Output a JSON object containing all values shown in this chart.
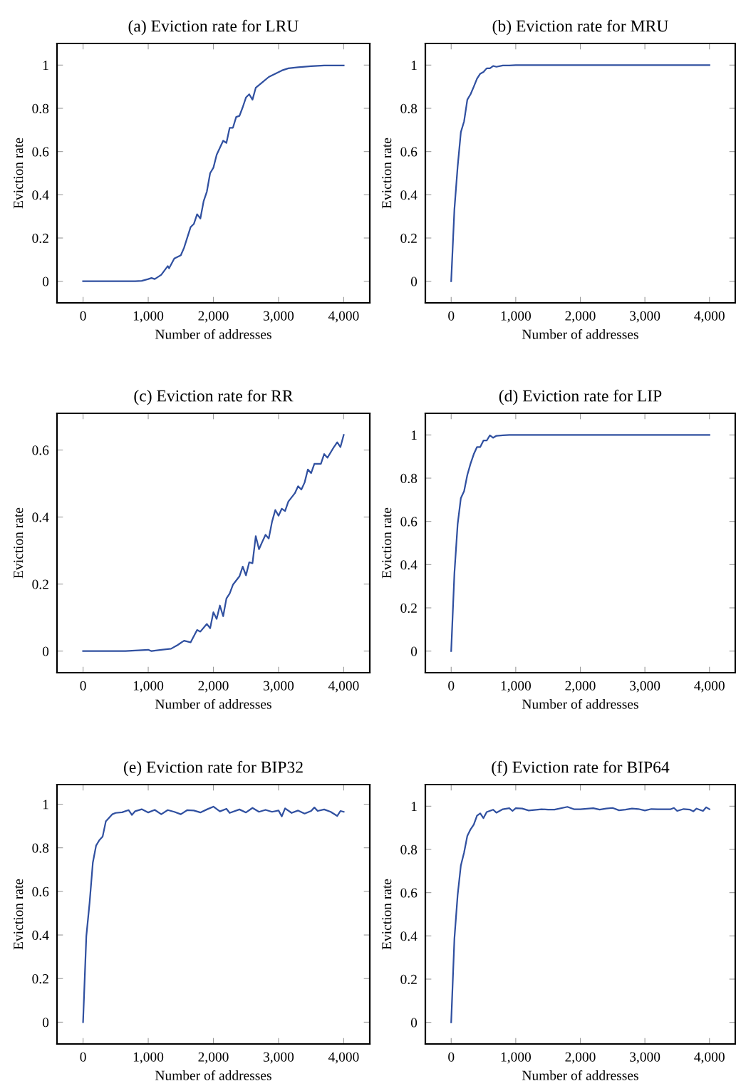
{
  "chart_data": [
    {
      "type": "line",
      "title": "(a) Eviction rate for LRU",
      "xlabel": "Number of addresses",
      "ylabel": "Eviction rate",
      "color": "#3050a0",
      "x": [
        0,
        800,
        900,
        1000,
        1050,
        1100,
        1200,
        1300,
        1320,
        1400,
        1500,
        1550,
        1650,
        1700,
        1750,
        1800,
        1850,
        1900,
        1950,
        2000,
        2050,
        2150,
        2200,
        2250,
        2300,
        2350,
        2400,
        2450,
        2500,
        2550,
        2600,
        2650,
        2750,
        2850,
        2950,
        3050,
        3150,
        3300,
        3500,
        3700,
        4000
      ],
      "values": [
        0,
        0,
        0.002,
        0.01,
        0.015,
        0.01,
        0.03,
        0.07,
        0.06,
        0.105,
        0.12,
        0.155,
        0.25,
        0.265,
        0.31,
        0.29,
        0.37,
        0.415,
        0.5,
        0.525,
        0.585,
        0.65,
        0.64,
        0.71,
        0.71,
        0.76,
        0.765,
        0.805,
        0.85,
        0.865,
        0.84,
        0.895,
        0.92,
        0.945,
        0.96,
        0.975,
        0.985,
        0.99,
        0.995,
        0.998,
        0.998
      ],
      "xlim": [
        -400,
        4400
      ],
      "ylim": [
        -0.1,
        1.1
      ],
      "xticks": [
        0,
        {
          "value": 1000,
          "label": "1,000"
        },
        {
          "value": 2000,
          "label": "2,000"
        },
        {
          "value": 3000,
          "label": "3,000"
        },
        {
          "value": 4000,
          "label": "4,000"
        }
      ],
      "yticks": [
        0,
        0.2,
        0.4,
        0.6,
        0.8,
        1
      ]
    },
    {
      "type": "line",
      "title": "(b) Eviction rate for MRU",
      "xlabel": "Number of addresses",
      "ylabel": "Eviction rate",
      "color": "#3050a0",
      "x": [
        0,
        50,
        100,
        150,
        200,
        250,
        300,
        350,
        400,
        450,
        500,
        550,
        600,
        650,
        700,
        800,
        900,
        1000,
        4000
      ],
      "values": [
        0,
        0.333,
        0.53,
        0.69,
        0.74,
        0.84,
        0.865,
        0.9,
        0.937,
        0.96,
        0.968,
        0.985,
        0.985,
        0.996,
        0.992,
        0.998,
        0.998,
        1,
        1
      ],
      "xlim": [
        -400,
        4400
      ],
      "ylim": [
        -0.1,
        1.1
      ],
      "xticks": [
        0,
        {
          "value": 1000,
          "label": "1,000"
        },
        {
          "value": 2000,
          "label": "2,000"
        },
        {
          "value": 3000,
          "label": "3,000"
        },
        {
          "value": 4000,
          "label": "4,000"
        }
      ],
      "yticks": [
        0,
        0.2,
        0.4,
        0.6,
        0.8,
        1
      ]
    },
    {
      "type": "line",
      "title": "(c) Eviction rate for RR",
      "xlabel": "Number of addresses",
      "ylabel": "Eviction rate",
      "color": "#3050a0",
      "x": [
        0,
        650,
        1000,
        1050,
        1200,
        1350,
        1450,
        1550,
        1650,
        1750,
        1800,
        1900,
        1950,
        2000,
        2050,
        2100,
        2150,
        2200,
        2250,
        2300,
        2400,
        2450,
        2500,
        2550,
        2600,
        2650,
        2700,
        2750,
        2800,
        2850,
        2900,
        2950,
        3000,
        3050,
        3100,
        3150,
        3250,
        3300,
        3350,
        3400,
        3450,
        3500,
        3550,
        3650,
        3700,
        3750,
        3850,
        3900,
        3950,
        4000
      ],
      "values": [
        0,
        0,
        0.004,
        0,
        0.004,
        0.007,
        0.018,
        0.031,
        0.026,
        0.063,
        0.058,
        0.081,
        0.068,
        0.116,
        0.096,
        0.136,
        0.104,
        0.157,
        0.172,
        0.198,
        0.223,
        0.252,
        0.226,
        0.265,
        0.262,
        0.343,
        0.304,
        0.326,
        0.347,
        0.336,
        0.386,
        0.421,
        0.404,
        0.425,
        0.418,
        0.446,
        0.471,
        0.492,
        0.482,
        0.503,
        0.542,
        0.531,
        0.559,
        0.559,
        0.588,
        0.577,
        0.609,
        0.623,
        0.609,
        0.645
      ],
      "xlim": [
        -400,
        4400
      ],
      "ylim": [
        -0.0645,
        0.7095
      ],
      "xticks": [
        0,
        {
          "value": 1000,
          "label": "1,000"
        },
        {
          "value": 2000,
          "label": "2,000"
        },
        {
          "value": 3000,
          "label": "3,000"
        },
        {
          "value": 4000,
          "label": "4,000"
        }
      ],
      "yticks": [
        0,
        0.2,
        0.4,
        0.6
      ]
    },
    {
      "type": "line",
      "title": "(d) Eviction rate for LIP",
      "xlabel": "Number of addresses",
      "ylabel": "Eviction rate",
      "color": "#3050a0",
      "x": [
        0,
        50,
        100,
        150,
        200,
        250,
        300,
        350,
        400,
        450,
        500,
        550,
        600,
        650,
        700,
        800,
        900,
        1000,
        4000
      ],
      "values": [
        0,
        0.36,
        0.587,
        0.708,
        0.74,
        0.815,
        0.867,
        0.911,
        0.944,
        0.944,
        0.974,
        0.974,
        0.998,
        0.987,
        0.996,
        0.998,
        1,
        1,
        1
      ],
      "xlim": [
        -400,
        4400
      ],
      "ylim": [
        -0.1,
        1.1
      ],
      "xticks": [
        0,
        {
          "value": 1000,
          "label": "1,000"
        },
        {
          "value": 2000,
          "label": "2,000"
        },
        {
          "value": 3000,
          "label": "3,000"
        },
        {
          "value": 4000,
          "label": "4,000"
        }
      ],
      "yticks": [
        0,
        0.2,
        0.4,
        0.6,
        0.8,
        1
      ]
    },
    {
      "type": "line",
      "title": "(e) Eviction rate for BIP32",
      "xlabel": "Number of addresses",
      "ylabel": "Eviction rate",
      "color": "#3050a0",
      "x": [
        0,
        50,
        100,
        150,
        200,
        250,
        300,
        350,
        400,
        450,
        500,
        600,
        700,
        750,
        800,
        900,
        1000,
        1100,
        1200,
        1300,
        1400,
        1500,
        1600,
        1700,
        1800,
        1900,
        2000,
        2100,
        2200,
        2250,
        2400,
        2500,
        2600,
        2700,
        2800,
        2900,
        3000,
        3050,
        3100,
        3200,
        3300,
        3400,
        3500,
        3550,
        3600,
        3700,
        3800,
        3900,
        3950,
        4000
      ],
      "values": [
        0,
        0.395,
        0.547,
        0.732,
        0.81,
        0.835,
        0.851,
        0.922,
        0.938,
        0.954,
        0.96,
        0.963,
        0.973,
        0.951,
        0.968,
        0.977,
        0.962,
        0.974,
        0.954,
        0.973,
        0.965,
        0.954,
        0.973,
        0.971,
        0.962,
        0.976,
        0.989,
        0.967,
        0.979,
        0.96,
        0.976,
        0.962,
        0.983,
        0.965,
        0.974,
        0.965,
        0.971,
        0.944,
        0.981,
        0.96,
        0.971,
        0.957,
        0.969,
        0.985,
        0.969,
        0.976,
        0.965,
        0.946,
        0.969,
        0.965
      ],
      "xlim": [
        -400,
        4400
      ],
      "ylim": [
        -0.1,
        1.09
      ],
      "xticks": [
        0,
        {
          "value": 1000,
          "label": "1,000"
        },
        {
          "value": 2000,
          "label": "2,000"
        },
        {
          "value": 3000,
          "label": "3,000"
        },
        {
          "value": 4000,
          "label": "4,000"
        }
      ],
      "yticks": [
        0,
        0.2,
        0.4,
        0.6,
        0.8,
        1
      ]
    },
    {
      "type": "line",
      "title": "(f) Eviction rate for BIP64",
      "xlabel": "Number of addresses",
      "ylabel": "Eviction rate",
      "color": "#3050a0",
      "x": [
        0,
        50,
        100,
        150,
        200,
        250,
        300,
        350,
        400,
        450,
        500,
        550,
        650,
        700,
        800,
        900,
        950,
        1000,
        1100,
        1200,
        1400,
        1500,
        1600,
        1800,
        1900,
        2000,
        2200,
        2300,
        2400,
        2500,
        2600,
        2700,
        2800,
        2900,
        3000,
        3100,
        3200,
        3400,
        3450,
        3500,
        3600,
        3700,
        3750,
        3800,
        3900,
        3950,
        4000
      ],
      "values": [
        0,
        0.387,
        0.589,
        0.726,
        0.786,
        0.863,
        0.893,
        0.915,
        0.956,
        0.967,
        0.945,
        0.973,
        0.984,
        0.97,
        0.986,
        0.991,
        0.978,
        0.991,
        0.989,
        0.98,
        0.986,
        0.984,
        0.984,
        0.997,
        0.986,
        0.986,
        0.991,
        0.984,
        0.989,
        0.992,
        0.981,
        0.984,
        0.989,
        0.987,
        0.98,
        0.987,
        0.986,
        0.986,
        0.992,
        0.978,
        0.987,
        0.984,
        0.976,
        0.989,
        0.978,
        0.995,
        0.986
      ],
      "xlim": [
        -400,
        4400
      ],
      "ylim": [
        -0.1,
        1.1
      ],
      "xticks": [
        0,
        {
          "value": 1000,
          "label": "1,000"
        },
        {
          "value": 2000,
          "label": "2,000"
        },
        {
          "value": 3000,
          "label": "3,000"
        },
        {
          "value": 4000,
          "label": "4,000"
        }
      ],
      "yticks": [
        0,
        0.2,
        0.4,
        0.6,
        0.8,
        1
      ]
    }
  ]
}
